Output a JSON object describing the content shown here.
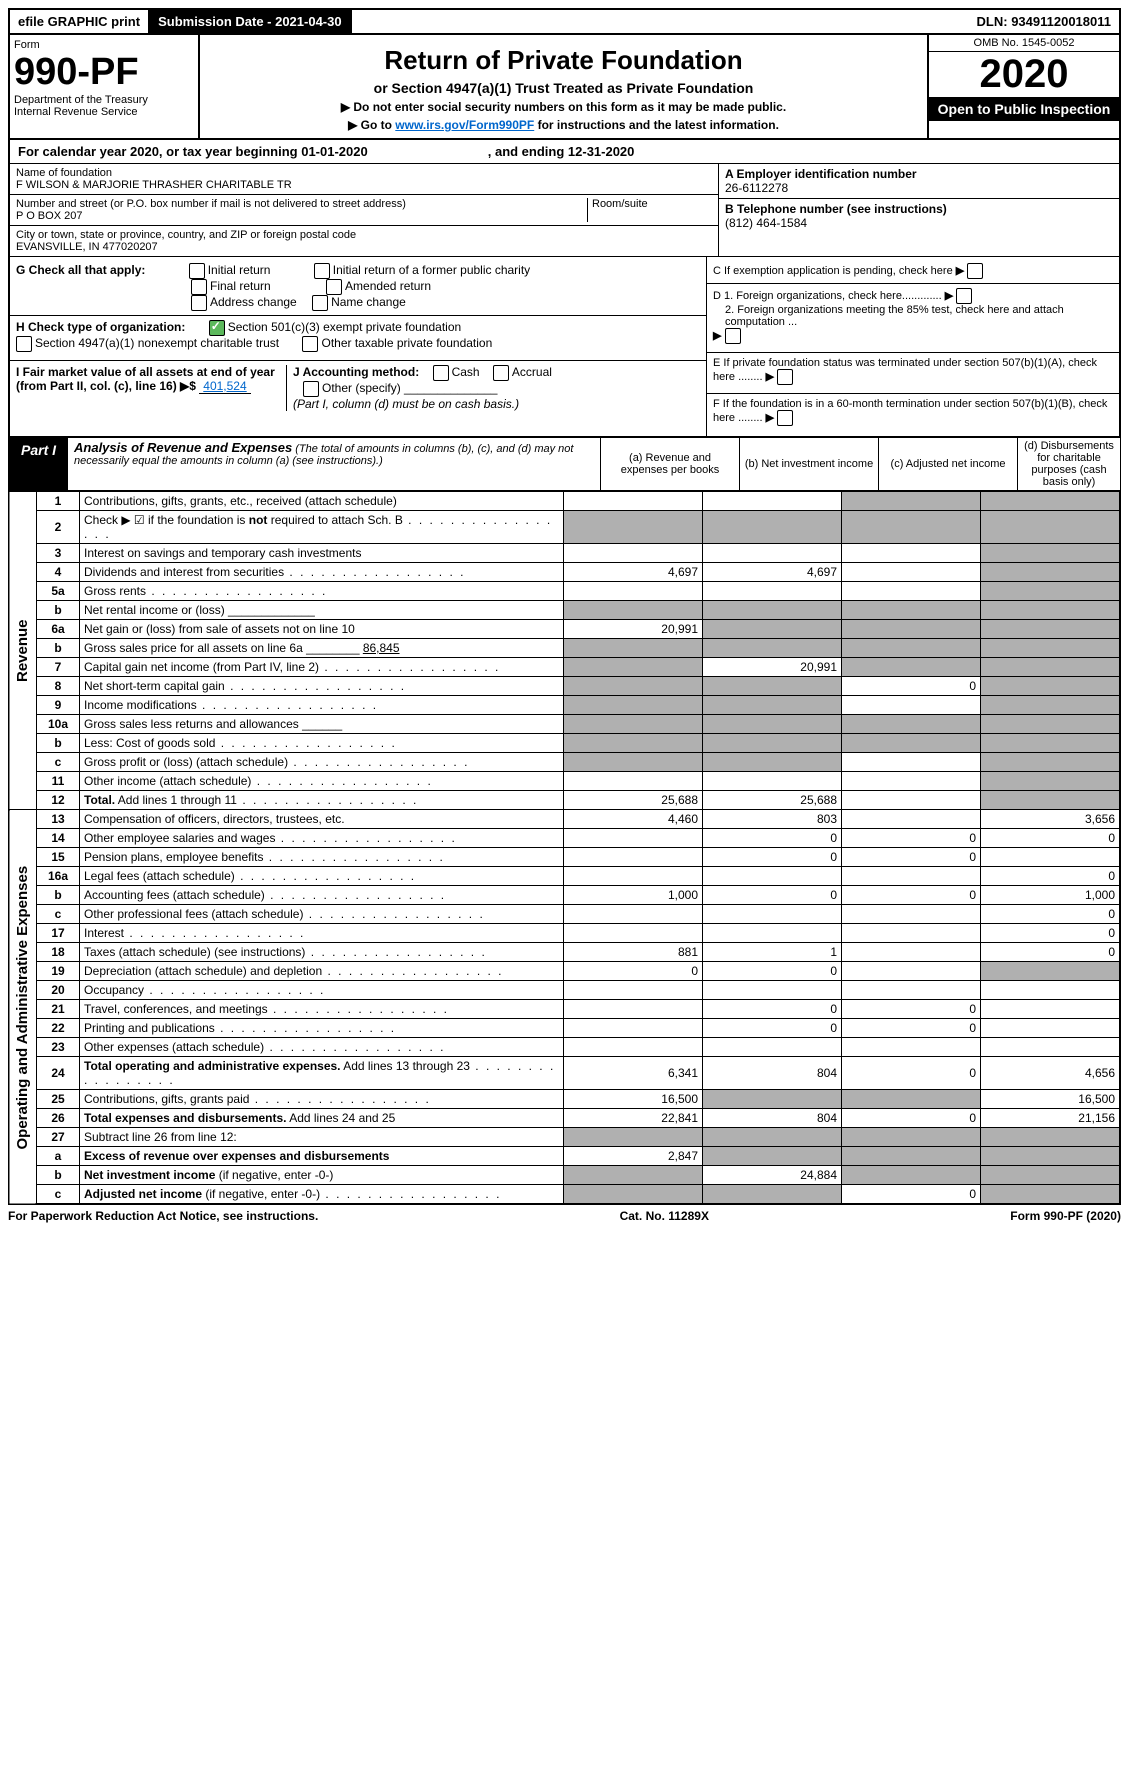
{
  "topbar": {
    "efile": "efile GRAPHIC print",
    "submission_label": "Submission Date - 2021-04-30",
    "dln": "DLN: 93491120018011"
  },
  "header": {
    "form_word": "Form",
    "form_num": "990-PF",
    "dept": "Department of the Treasury",
    "irs": "Internal Revenue Service",
    "title": "Return of Private Foundation",
    "subtitle": "or Section 4947(a)(1) Trust Treated as Private Foundation",
    "note1": "▶ Do not enter social security numbers on this form as it may be made public.",
    "note2_pre": "▶ Go to ",
    "note2_link": "www.irs.gov/Form990PF",
    "note2_post": " for instructions and the latest information.",
    "omb": "OMB No. 1545-0052",
    "year": "2020",
    "open": "Open to Public Inspection"
  },
  "calyear": {
    "text": "For calendar year 2020, or tax year beginning 01-01-2020",
    "ending": ", and ending 12-31-2020"
  },
  "info": {
    "name_lbl": "Name of foundation",
    "name": "F WILSON & MARJORIE THRASHER CHARITABLE TR",
    "addr_lbl": "Number and street (or P.O. box number if mail is not delivered to street address)",
    "room_lbl": "Room/suite",
    "addr": "P O BOX 207",
    "city_lbl": "City or town, state or province, country, and ZIP or foreign postal code",
    "city": "EVANSVILLE, IN  477020207",
    "ein_lbl": "A Employer identification number",
    "ein": "26-6112278",
    "phone_lbl": "B Telephone number (see instructions)",
    "phone": "(812) 464-1584",
    "c_lbl": "C If exemption application is pending, check here",
    "d1": "D 1. Foreign organizations, check here.............",
    "d2": "2. Foreign organizations meeting the 85% test, check here and attach computation ...",
    "e_lbl": "E  If private foundation status was terminated under section 507(b)(1)(A), check here ........",
    "f_lbl": "F  If the foundation is in a 60-month termination under section 507(b)(1)(B), check here ........"
  },
  "checks": {
    "g_lbl": "G Check all that apply:",
    "initial": "Initial return",
    "initial_former": "Initial return of a former public charity",
    "final": "Final return",
    "amended": "Amended return",
    "addr_change": "Address change",
    "name_change": "Name change",
    "h_lbl": "H Check type of organization:",
    "h_501c3": "Section 501(c)(3) exempt private foundation",
    "h_4947": "Section 4947(a)(1) nonexempt charitable trust",
    "h_other": "Other taxable private foundation",
    "i_lbl": "I Fair market value of all assets at end of year (from Part II, col. (c), line 16) ▶$ ",
    "i_val": "401,524",
    "j_lbl": "J Accounting method:",
    "j_cash": "Cash",
    "j_accrual": "Accrual",
    "j_other": "Other (specify)",
    "j_note": "(Part I, column (d) must be on cash basis.)"
  },
  "part1": {
    "label": "Part I",
    "title": "Analysis of Revenue and Expenses",
    "note": "(The total of amounts in columns (b), (c), and (d) may not necessarily equal the amounts in column (a) (see instructions).)",
    "col_a": "(a)   Revenue and expenses per books",
    "col_b": "(b)   Net investment income",
    "col_c": "(c)   Adjusted net income",
    "col_d": "(d)   Disbursements for charitable purposes (cash basis only)"
  },
  "sections": {
    "revenue": "Revenue",
    "expenses": "Operating and Administrative Expenses"
  },
  "rows": [
    {
      "n": "1",
      "d": "Contributions, gifts, grants, etc., received (attach schedule)",
      "a": "",
      "b": "",
      "c": "g",
      "dd": "g"
    },
    {
      "n": "2",
      "d": "Check ▶ ☑ if the foundation is <b>not</b> required to attach Sch. B",
      "a": "g",
      "b": "g",
      "c": "g",
      "dd": "g",
      "html": true,
      "dots": true
    },
    {
      "n": "3",
      "d": "Interest on savings and temporary cash investments",
      "a": "",
      "b": "",
      "c": "",
      "dd": "g"
    },
    {
      "n": "4",
      "d": "Dividends and interest from securities",
      "a": "4,697",
      "b": "4,697",
      "c": "",
      "dd": "g",
      "dots": true
    },
    {
      "n": "5a",
      "d": "Gross rents",
      "a": "",
      "b": "",
      "c": "",
      "dd": "g",
      "dots": true
    },
    {
      "n": "b",
      "d": "Net rental income or (loss)   _____________",
      "a": "g",
      "b": "g",
      "c": "g",
      "dd": "g"
    },
    {
      "n": "6a",
      "d": "Net gain or (loss) from sale of assets not on line 10",
      "a": "20,991",
      "b": "g",
      "c": "g",
      "dd": "g"
    },
    {
      "n": "b",
      "d": "Gross sales price for all assets on line 6a ________ <u>86,845</u>",
      "a": "g",
      "b": "g",
      "c": "g",
      "dd": "g",
      "html": true
    },
    {
      "n": "7",
      "d": "Capital gain net income (from Part IV, line 2)",
      "a": "g",
      "b": "20,991",
      "c": "g",
      "dd": "g",
      "dots": true
    },
    {
      "n": "8",
      "d": "Net short-term capital gain",
      "a": "g",
      "b": "g",
      "c": "0",
      "dd": "g",
      "dots": true
    },
    {
      "n": "9",
      "d": "Income modifications",
      "a": "g",
      "b": "g",
      "c": "",
      "dd": "g",
      "dots": true
    },
    {
      "n": "10a",
      "d": "Gross sales less returns and allowances  ______",
      "a": "g",
      "b": "g",
      "c": "g",
      "dd": "g"
    },
    {
      "n": "b",
      "d": "Less: Cost of goods sold",
      "a": "g",
      "b": "g",
      "c": "g",
      "dd": "g",
      "dots": true
    },
    {
      "n": "c",
      "d": "Gross profit or (loss) (attach schedule)",
      "a": "g",
      "b": "g",
      "c": "",
      "dd": "g",
      "dots": true
    },
    {
      "n": "11",
      "d": "Other income (attach schedule)",
      "a": "",
      "b": "",
      "c": "",
      "dd": "g",
      "dots": true
    },
    {
      "n": "12",
      "d": "<b>Total.</b> Add lines 1 through 11",
      "a": "25,688",
      "b": "25,688",
      "c": "",
      "dd": "g",
      "html": true,
      "dots": true
    }
  ],
  "exp_rows": [
    {
      "n": "13",
      "d": "Compensation of officers, directors, trustees, etc.",
      "a": "4,460",
      "b": "803",
      "c": "",
      "dd": "3,656"
    },
    {
      "n": "14",
      "d": "Other employee salaries and wages",
      "a": "",
      "b": "0",
      "c": "0",
      "dd": "0",
      "dots": true
    },
    {
      "n": "15",
      "d": "Pension plans, employee benefits",
      "a": "",
      "b": "0",
      "c": "0",
      "dd": "",
      "dots": true
    },
    {
      "n": "16a",
      "d": "Legal fees (attach schedule)",
      "a": "",
      "b": "",
      "c": "",
      "dd": "0",
      "dots": true
    },
    {
      "n": "b",
      "d": "Accounting fees (attach schedule)",
      "a": "1,000",
      "b": "0",
      "c": "0",
      "dd": "1,000",
      "dots": true
    },
    {
      "n": "c",
      "d": "Other professional fees (attach schedule)",
      "a": "",
      "b": "",
      "c": "",
      "dd": "0",
      "dots": true
    },
    {
      "n": "17",
      "d": "Interest",
      "a": "",
      "b": "",
      "c": "",
      "dd": "0",
      "dots": true
    },
    {
      "n": "18",
      "d": "Taxes (attach schedule) (see instructions)",
      "a": "881",
      "b": "1",
      "c": "",
      "dd": "0",
      "dots": true
    },
    {
      "n": "19",
      "d": "Depreciation (attach schedule) and depletion",
      "a": "0",
      "b": "0",
      "c": "",
      "dd": "g",
      "dots": true
    },
    {
      "n": "20",
      "d": "Occupancy",
      "a": "",
      "b": "",
      "c": "",
      "dd": "",
      "dots": true
    },
    {
      "n": "21",
      "d": "Travel, conferences, and meetings",
      "a": "",
      "b": "0",
      "c": "0",
      "dd": "",
      "dots": true
    },
    {
      "n": "22",
      "d": "Printing and publications",
      "a": "",
      "b": "0",
      "c": "0",
      "dd": "",
      "dots": true
    },
    {
      "n": "23",
      "d": "Other expenses (attach schedule)",
      "a": "",
      "b": "",
      "c": "",
      "dd": "",
      "dots": true
    },
    {
      "n": "24",
      "d": "<b>Total operating and administrative expenses.</b> Add lines 13 through 23",
      "a": "6,341",
      "b": "804",
      "c": "0",
      "dd": "4,656",
      "html": true,
      "dots": true
    },
    {
      "n": "25",
      "d": "Contributions, gifts, grants paid",
      "a": "16,500",
      "b": "g",
      "c": "g",
      "dd": "16,500",
      "dots": true
    },
    {
      "n": "26",
      "d": "<b>Total expenses and disbursements.</b> Add lines 24 and 25",
      "a": "22,841",
      "b": "804",
      "c": "0",
      "dd": "21,156",
      "html": true
    },
    {
      "n": "27",
      "d": "Subtract line 26 from line 12:",
      "a": "g",
      "b": "g",
      "c": "g",
      "dd": "g"
    },
    {
      "n": "a",
      "d": "<b>Excess of revenue over expenses and disbursements</b>",
      "a": "2,847",
      "b": "g",
      "c": "g",
      "dd": "g",
      "html": true
    },
    {
      "n": "b",
      "d": "<b>Net investment income</b> (if negative, enter -0-)",
      "a": "g",
      "b": "24,884",
      "c": "g",
      "dd": "g",
      "html": true
    },
    {
      "n": "c",
      "d": "<b>Adjusted net income</b> (if negative, enter -0-)",
      "a": "g",
      "b": "g",
      "c": "0",
      "dd": "g",
      "html": true,
      "dots": true
    }
  ],
  "footer": {
    "left": "For Paperwork Reduction Act Notice, see instructions.",
    "mid": "Cat. No. 11289X",
    "right": "Form 990-PF (2020)"
  }
}
